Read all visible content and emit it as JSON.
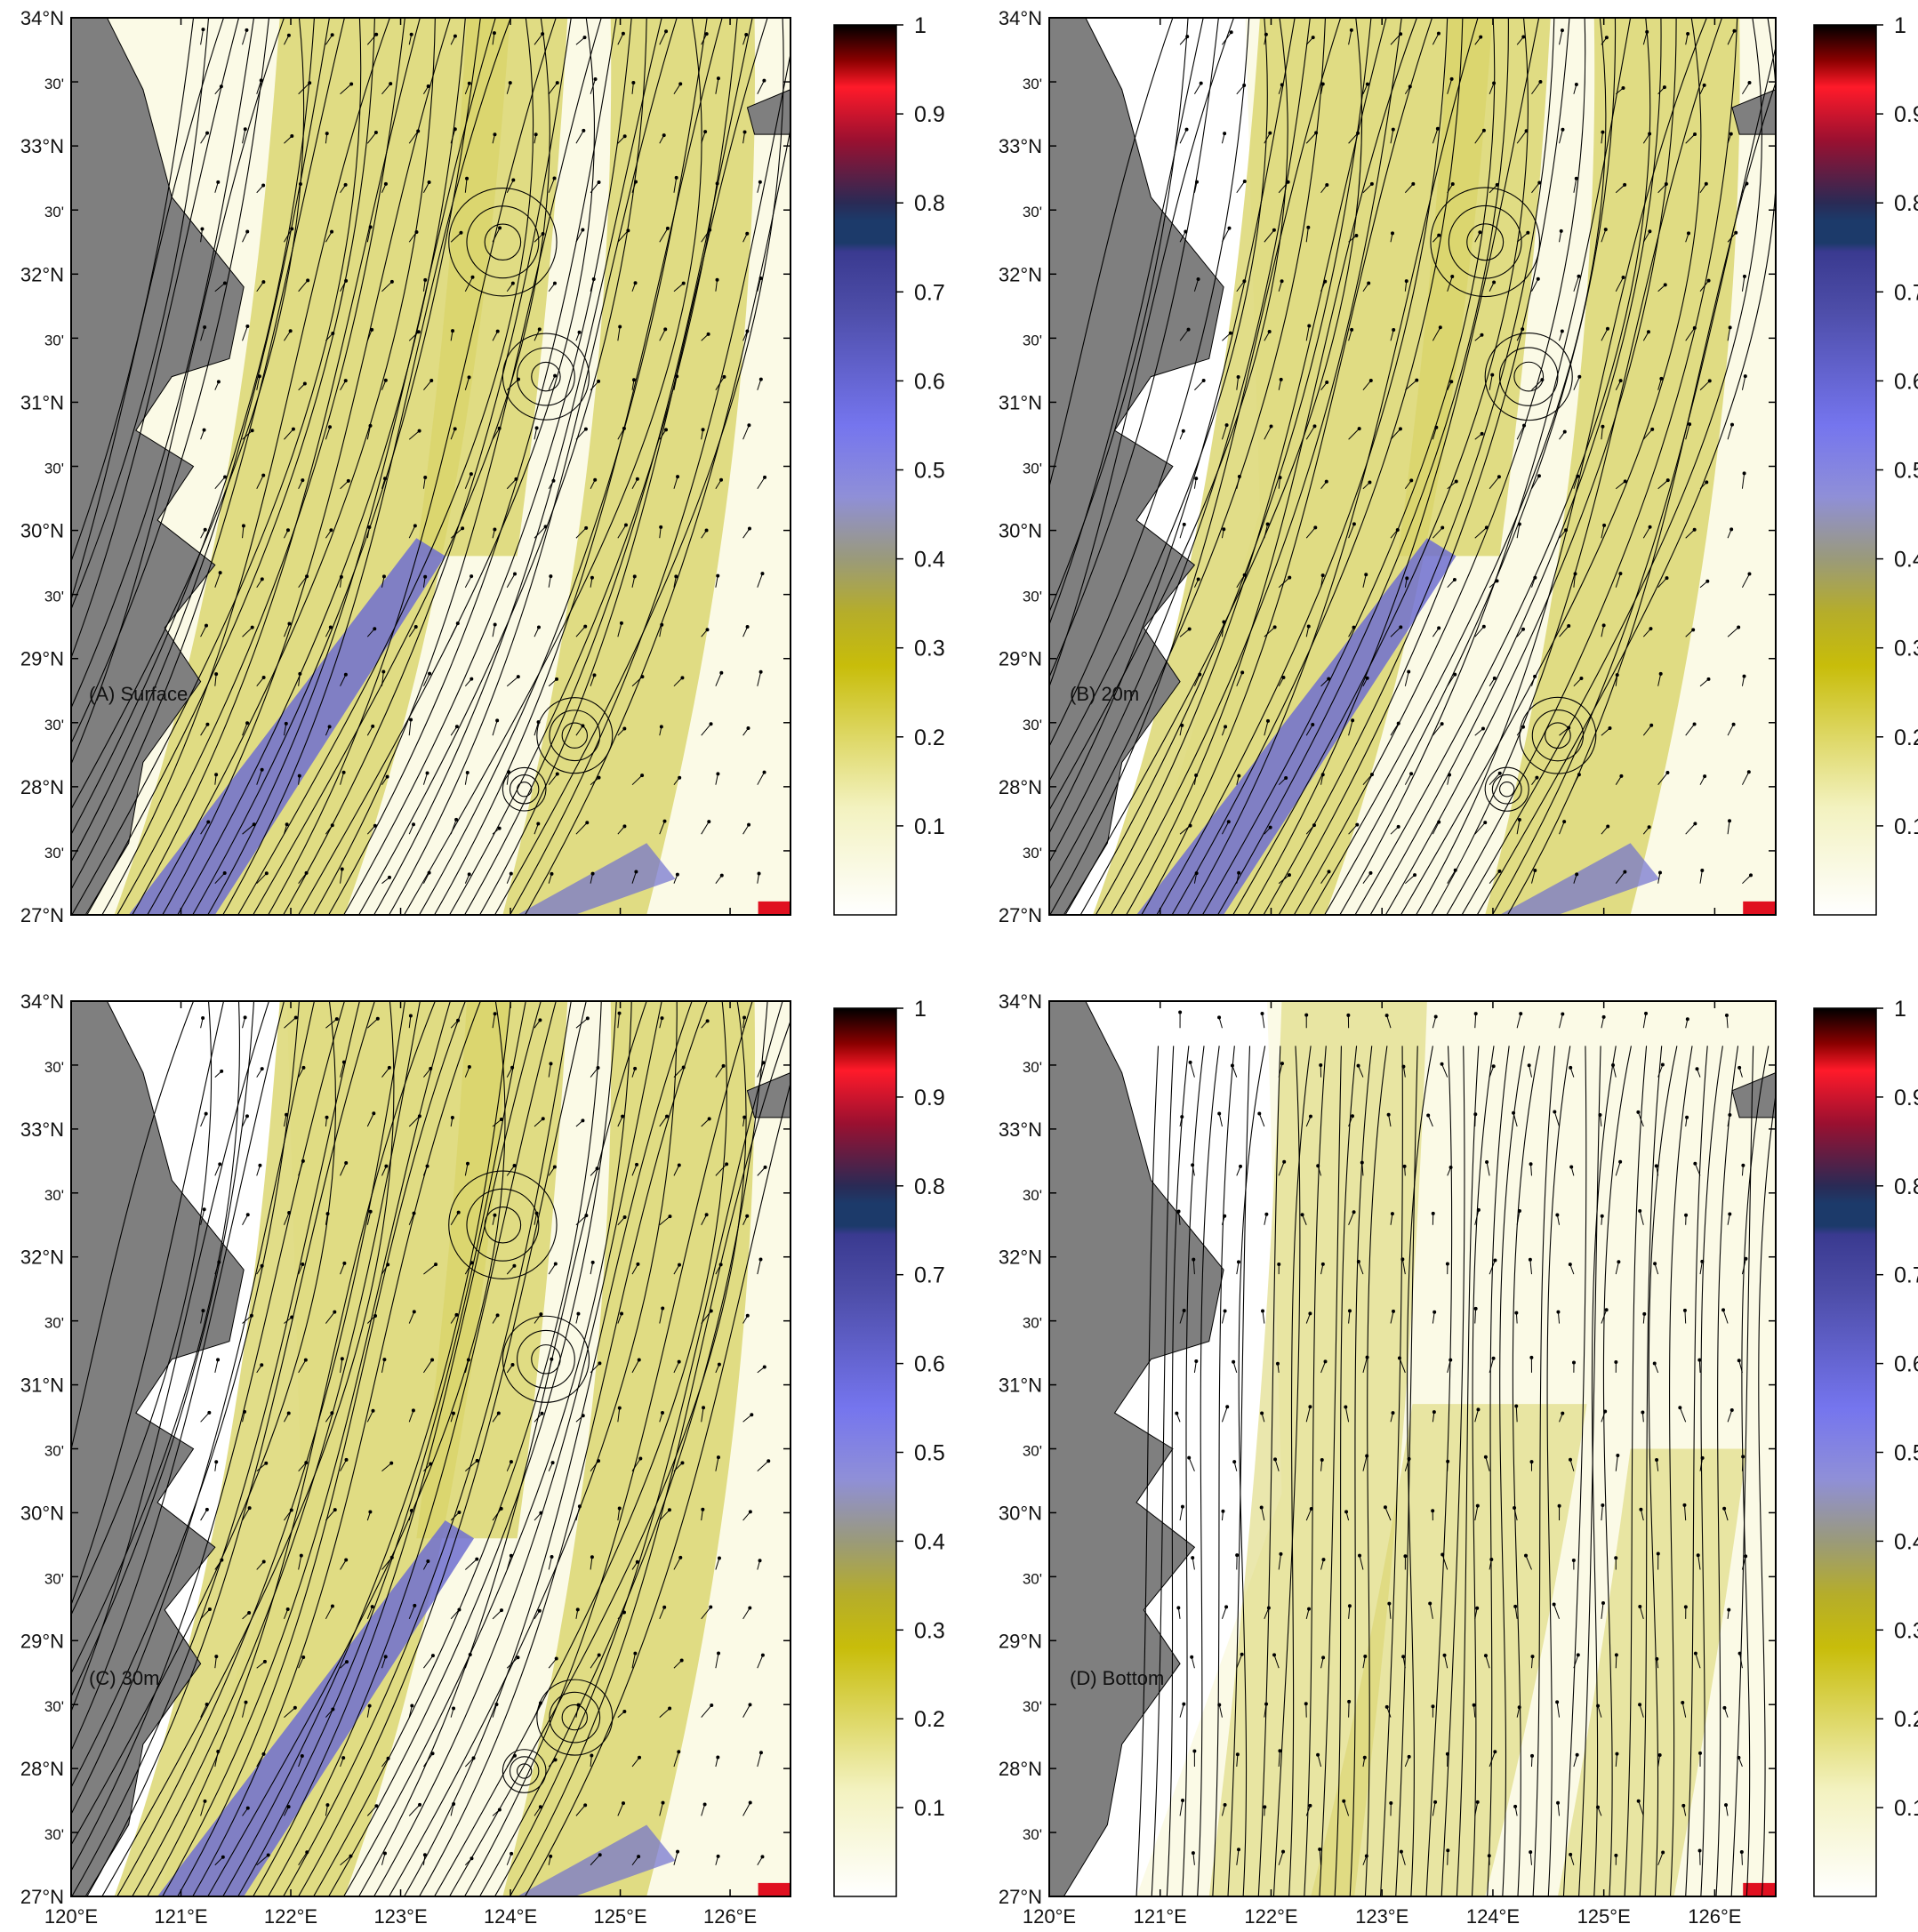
{
  "figure": {
    "panels": [
      {
        "id": "A",
        "label": "(A) Surface"
      },
      {
        "id": "B",
        "label": "(B) 20m"
      },
      {
        "id": "C",
        "label": "(C) 30m"
      },
      {
        "id": "D",
        "label": "(D) Bottom"
      }
    ],
    "lat_ticks": [
      "27°N",
      "30'",
      "28°N",
      "30'",
      "29°N",
      "30'",
      "30°N",
      "30'",
      "31°N",
      "30'",
      "32°N",
      "30'",
      "33°N",
      "30'",
      "34°N"
    ],
    "lon_ticks": [
      "120°E",
      "121°E",
      "122°E",
      "123°E",
      "124°E",
      "125°E",
      "126°E"
    ],
    "colorbar_ticks": [
      "0.1",
      "0.2",
      "0.3",
      "0.4",
      "0.5",
      "0.6",
      "0.7",
      "0.8",
      "0.9",
      "1"
    ],
    "colorbar_stops": [
      {
        "v": 0.0,
        "color": "#ffffff"
      },
      {
        "v": 0.12,
        "color": "#f3f2c0"
      },
      {
        "v": 0.28,
        "color": "#c8bd0a"
      },
      {
        "v": 0.34,
        "color": "#b5ad2a"
      },
      {
        "v": 0.4,
        "color": "#9a9a7a"
      },
      {
        "v": 0.47,
        "color": "#8f8fd8"
      },
      {
        "v": 0.55,
        "color": "#7575ee"
      },
      {
        "v": 0.68,
        "color": "#4d4da8"
      },
      {
        "v": 0.745,
        "color": "#3a3a90"
      },
      {
        "v": 0.755,
        "color": "#1c3a6a"
      },
      {
        "v": 0.78,
        "color": "#1c3a6a"
      },
      {
        "v": 0.8,
        "color": "#2a2a55"
      },
      {
        "v": 0.87,
        "color": "#9a1030"
      },
      {
        "v": 0.93,
        "color": "#ff1a2a"
      },
      {
        "v": 0.96,
        "color": "#8a0000"
      },
      {
        "v": 1.0,
        "color": "#000000"
      }
    ],
    "colors": {
      "land": "#7f7f7f",
      "ocean_low": "#fbfae6",
      "ocean_mid": "#d9d46a",
      "jet": "#6f6fd0",
      "vectors": "#000000"
    }
  }
}
